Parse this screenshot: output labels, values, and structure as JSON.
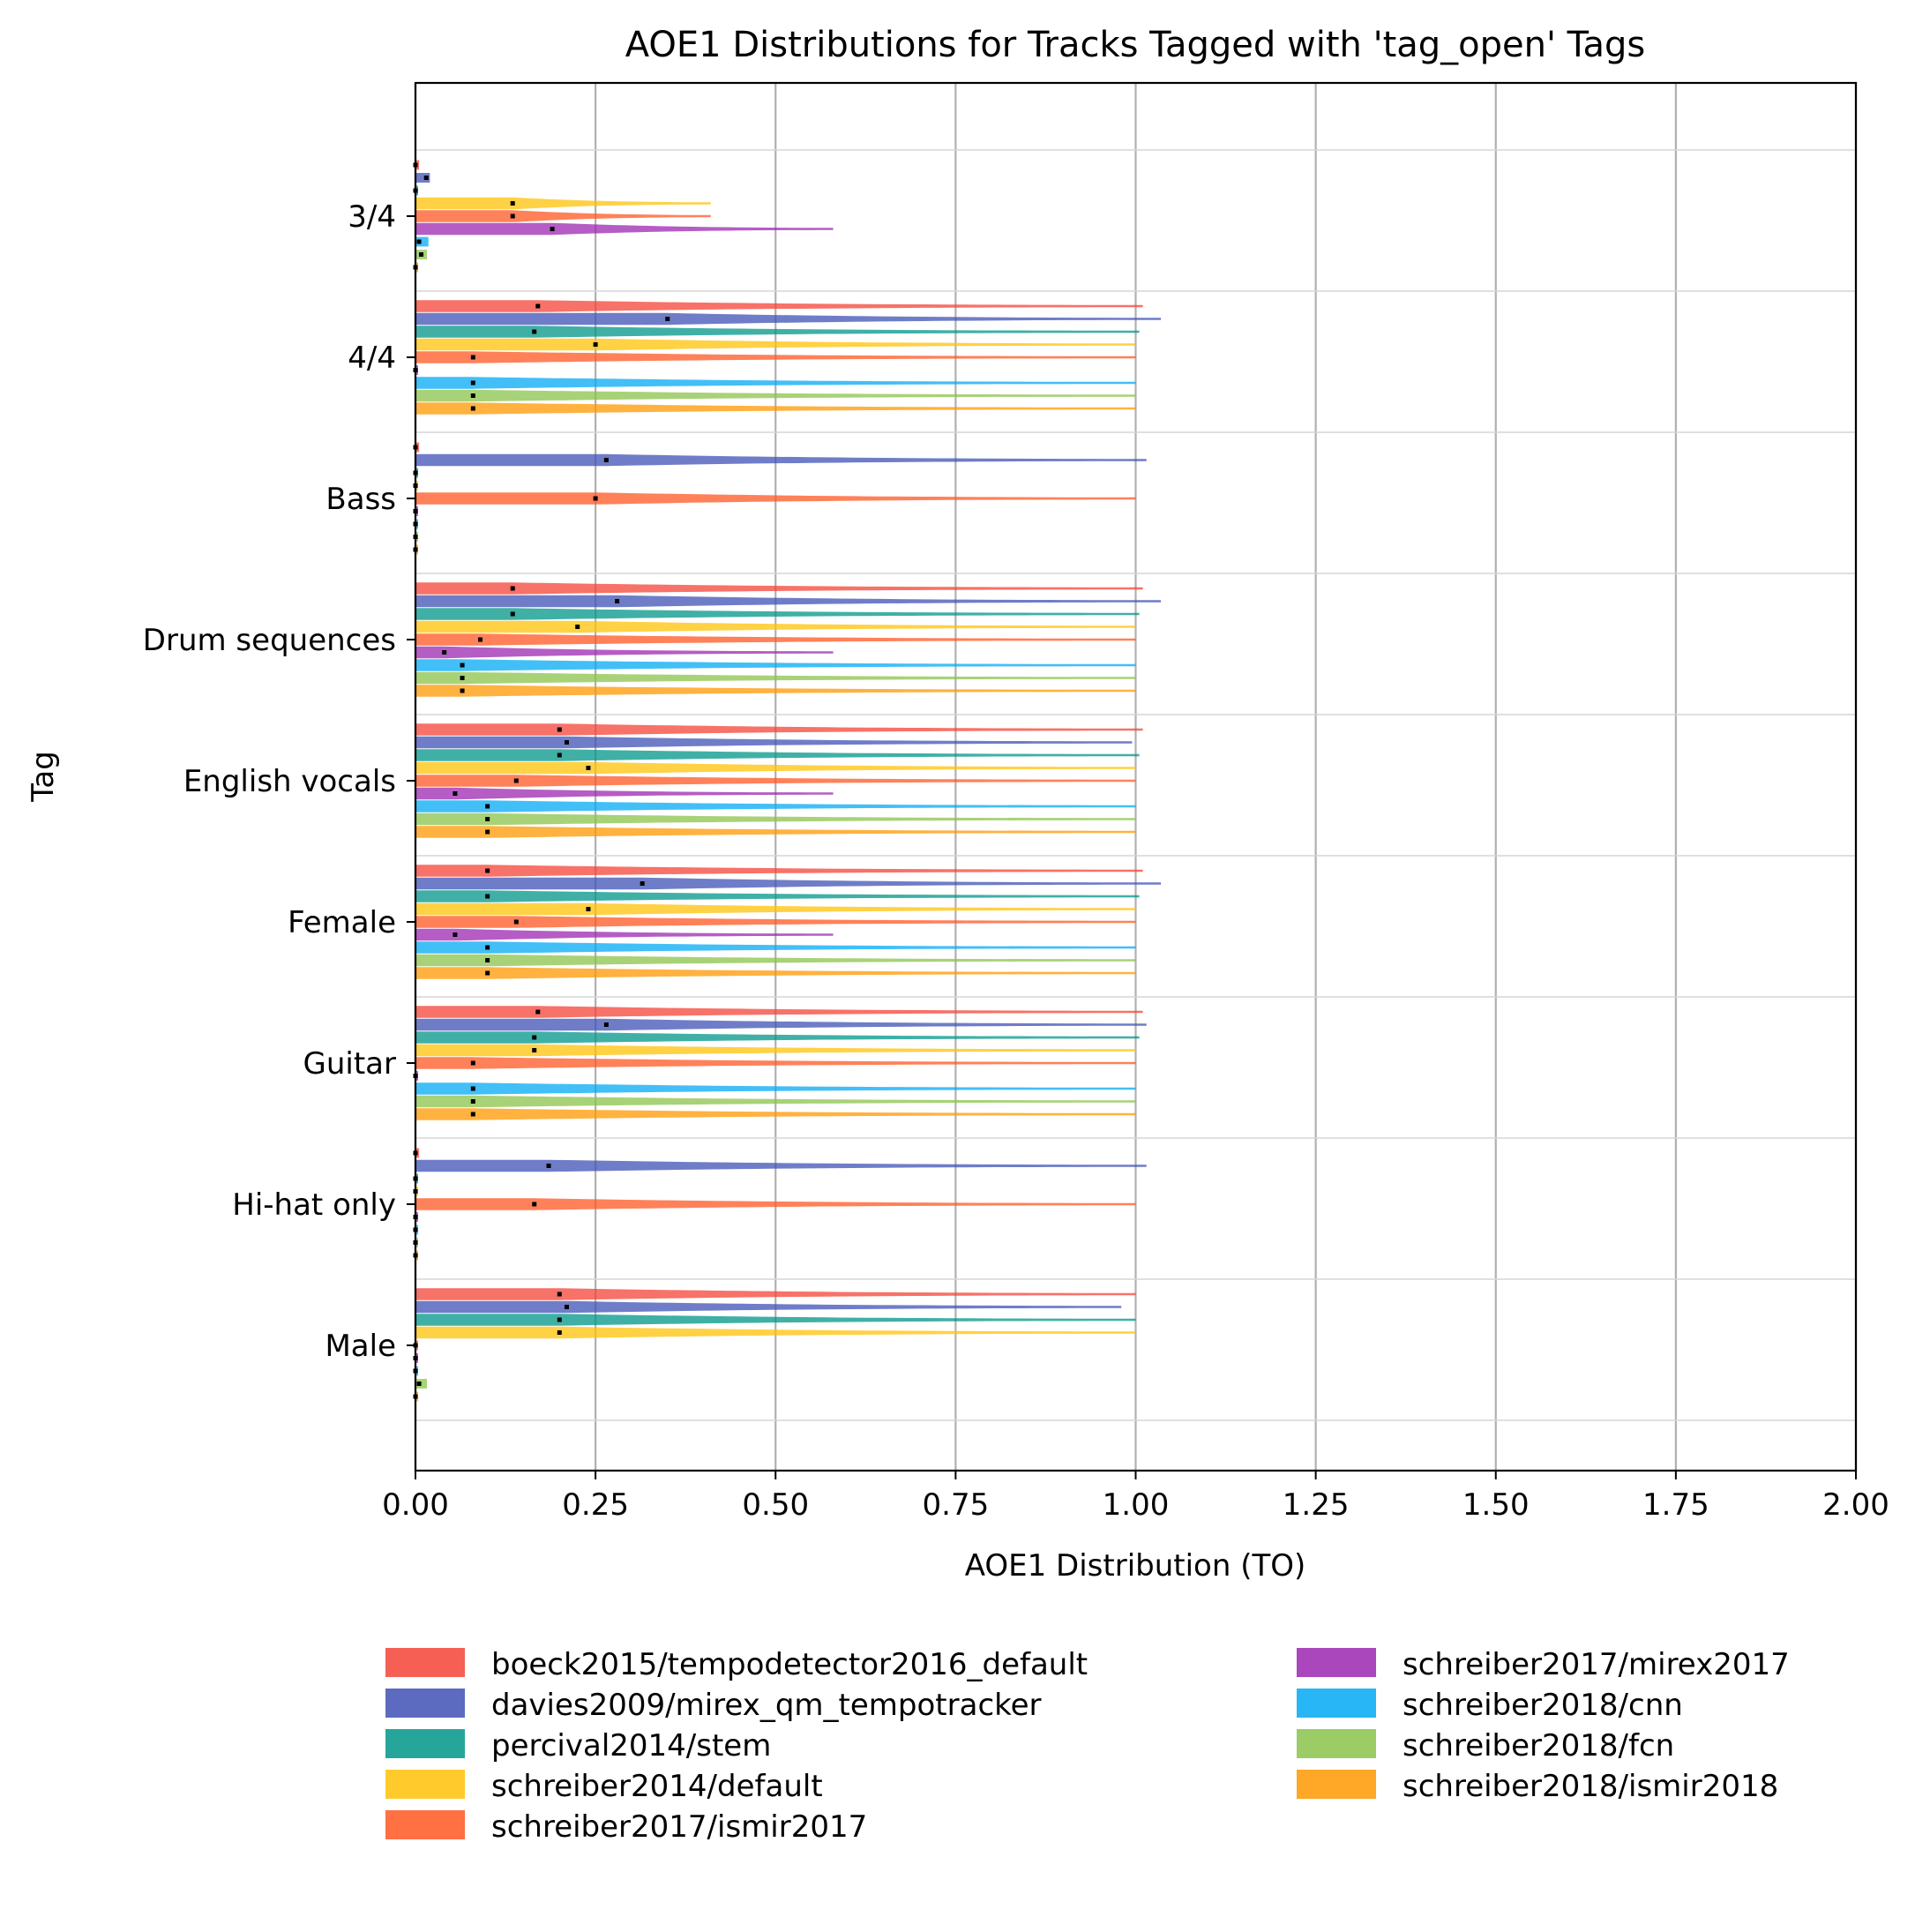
{
  "chart_data": {
    "type": "violin",
    "orientation": "horizontal",
    "title": "AOE1 Distributions for Tracks Tagged with 'tag_open' Tags",
    "xlabel": "AOE1 Distribution (TO)",
    "ylabel": "Tag",
    "xlim": [
      0,
      2.0
    ],
    "xticks": [
      "0.00",
      "0.25",
      "0.50",
      "0.75",
      "1.00",
      "1.25",
      "1.50",
      "1.75",
      "2.00"
    ],
    "grid": "vertical",
    "legend_position": "bottom",
    "categories": [
      "3/4",
      "4/4",
      "Bass",
      "Drum sequences",
      "English vocals",
      "Female",
      "Guitar",
      "Hi-hat only",
      "Male"
    ],
    "series": [
      {
        "name": "boeck2015/tempodetector2016_default",
        "color": "#f44336",
        "median": [
          0.0,
          0.17,
          0.0,
          0.135,
          0.2,
          0.1,
          0.17,
          0.0,
          0.2
        ],
        "max": [
          0.005,
          1.01,
          0.005,
          1.01,
          1.01,
          1.01,
          1.01,
          0.005,
          1.0
        ]
      },
      {
        "name": "davies2009/mirex_qm_tempotracker",
        "color": "#3f51b5",
        "median": [
          0.015,
          0.35,
          0.265,
          0.28,
          0.21,
          0.315,
          0.265,
          0.185,
          0.21
        ],
        "max": [
          0.02,
          1.035,
          1.015,
          1.035,
          0.995,
          1.035,
          1.015,
          1.015,
          0.98
        ]
      },
      {
        "name": "percival2014/stem",
        "color": "#009688",
        "median": [
          0.0,
          0.165,
          0.0,
          0.135,
          0.2,
          0.1,
          0.165,
          0.0,
          0.2
        ],
        "max": [
          0.003,
          1.005,
          0.003,
          1.005,
          1.005,
          1.005,
          1.005,
          0.003,
          1.0
        ]
      },
      {
        "name": "schreiber2014/default",
        "color": "#ffc107",
        "median": [
          0.135,
          0.25,
          0.0,
          0.225,
          0.24,
          0.24,
          0.165,
          0.0,
          0.2
        ],
        "max": [
          0.41,
          1.0,
          0.003,
          1.0,
          1.0,
          1.0,
          1.0,
          0.003,
          1.0
        ]
      },
      {
        "name": "schreiber2017/ismir2017",
        "color": "#ff5722",
        "median": [
          0.135,
          0.08,
          0.25,
          0.09,
          0.14,
          0.14,
          0.08,
          0.165,
          0.0
        ],
        "max": [
          0.41,
          1.0,
          1.0,
          1.0,
          1.0,
          1.0,
          1.0,
          1.0,
          0.003
        ]
      },
      {
        "name": "schreiber2017/mirex2017",
        "color": "#9c27b0",
        "median": [
          0.19,
          0.0,
          0.0,
          0.04,
          0.055,
          0.055,
          0.0,
          0.0,
          0.0
        ],
        "max": [
          0.58,
          0.003,
          0.003,
          0.58,
          0.58,
          0.58,
          0.003,
          0.003,
          0.003
        ]
      },
      {
        "name": "schreiber2018/cnn",
        "color": "#03a9f4",
        "median": [
          0.005,
          0.08,
          0.0,
          0.065,
          0.1,
          0.1,
          0.08,
          0.0,
          0.0
        ],
        "max": [
          0.018,
          1.0,
          0.003,
          1.0,
          1.0,
          1.0,
          1.0,
          0.003,
          0.003
        ]
      },
      {
        "name": "schreiber2018/fcn",
        "color": "#8bc34a",
        "median": [
          0.008,
          0.08,
          0.0,
          0.065,
          0.1,
          0.1,
          0.08,
          0.0,
          0.005
        ],
        "max": [
          0.016,
          1.0,
          0.003,
          1.0,
          1.0,
          1.0,
          1.0,
          0.003,
          0.016
        ]
      },
      {
        "name": "schreiber2018/ismir2018",
        "color": "#ff9800",
        "median": [
          0.0,
          0.08,
          0.0,
          0.065,
          0.1,
          0.1,
          0.08,
          0.0,
          0.0
        ],
        "max": [
          0.003,
          1.0,
          0.003,
          1.0,
          1.0,
          1.0,
          1.0,
          0.003,
          0.003
        ]
      }
    ]
  }
}
